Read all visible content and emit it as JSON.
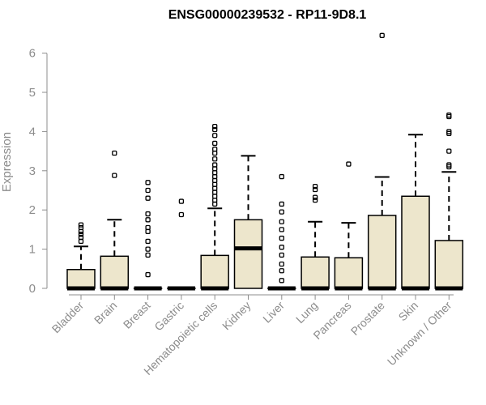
{
  "chart_data": {
    "type": "boxplot",
    "title": "ENSG00000239532 - RP11-9D8.1",
    "ylabel": "Expression",
    "xlabel": "",
    "ylim": [
      0,
      6.5
    ],
    "yticks": [
      0,
      1,
      2,
      3,
      4,
      5,
      6
    ],
    "box_color": "#ede6cc",
    "categories": [
      "Bladder",
      "Brain",
      "Breast",
      "Gastric",
      "Hematopoietic cells",
      "Kidney",
      "Liver",
      "Lung",
      "Pancreas",
      "Prostate",
      "Skin",
      "Unknown / Other"
    ],
    "boxes": [
      {
        "category": "Bladder",
        "min": 0,
        "q1": 0,
        "median": 0,
        "q3": 0.48,
        "max": 1.07,
        "outliers": [
          1.2,
          1.3,
          1.38,
          1.45,
          1.55,
          1.62
        ]
      },
      {
        "category": "Brain",
        "min": 0,
        "q1": 0,
        "median": 0,
        "q3": 0.82,
        "max": 1.75,
        "outliers": [
          2.88,
          3.45
        ]
      },
      {
        "category": "Breast",
        "min": 0,
        "q1": 0,
        "median": 0,
        "q3": 0,
        "max": 0,
        "outliers": [
          0.35,
          0.85,
          1.0,
          1.2,
          1.45,
          1.55,
          1.75,
          1.9,
          2.3,
          2.5,
          2.7
        ]
      },
      {
        "category": "Gastric",
        "min": 0,
        "q1": 0,
        "median": 0,
        "q3": 0,
        "max": 0,
        "outliers": [
          1.88,
          2.22
        ]
      },
      {
        "category": "Hematopoietic cells",
        "min": 0,
        "q1": 0,
        "median": 0,
        "q3": 0.84,
        "max": 2.04,
        "outliers": [
          2.15,
          2.25,
          2.35,
          2.45,
          2.55,
          2.65,
          2.75,
          2.85,
          2.95,
          3.05,
          3.15,
          3.3,
          3.45,
          3.55,
          3.7,
          3.9,
          4.05,
          4.13
        ]
      },
      {
        "category": "Kidney",
        "min": 0,
        "q1": 0,
        "median": 1.02,
        "q3": 1.75,
        "max": 3.38,
        "outliers": []
      },
      {
        "category": "Liver",
        "min": 0,
        "q1": 0,
        "median": 0,
        "q3": 0,
        "max": 0,
        "outliers": [
          0.2,
          0.45,
          0.62,
          0.85,
          1.05,
          1.28,
          1.5,
          1.7,
          1.95,
          2.15,
          2.85
        ]
      },
      {
        "category": "Lung",
        "min": 0,
        "q1": 0,
        "median": 0,
        "q3": 0.8,
        "max": 1.7,
        "outliers": [
          2.25,
          2.32,
          2.52,
          2.6
        ]
      },
      {
        "category": "Pancreas",
        "min": 0,
        "q1": 0,
        "median": 0,
        "q3": 0.78,
        "max": 1.67,
        "outliers": [
          3.17
        ]
      },
      {
        "category": "Prostate",
        "min": 0,
        "q1": 0,
        "median": 0,
        "q3": 1.86,
        "max": 2.84,
        "outliers": [
          6.45
        ]
      },
      {
        "category": "Skin",
        "min": 0,
        "q1": 0,
        "median": 0,
        "q3": 2.35,
        "max": 3.92,
        "outliers": []
      },
      {
        "category": "Unknown / Other",
        "min": 0,
        "q1": 0,
        "median": 0,
        "q3": 1.22,
        "max": 2.97,
        "outliers": [
          3.1,
          3.15,
          3.5,
          3.95,
          4.0,
          4.38,
          4.42
        ]
      }
    ]
  }
}
